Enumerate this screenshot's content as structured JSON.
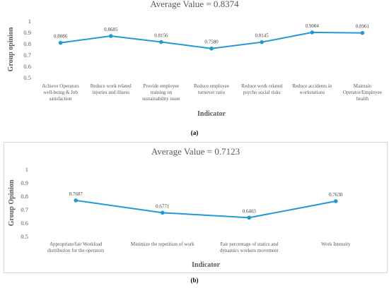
{
  "chart_data": [
    {
      "type": "line",
      "title": "Average Value = 0.8374",
      "xlabel": "Indicator",
      "ylabel": "Group opinion",
      "ylim": [
        0.5,
        1
      ],
      "yticks": [
        "0.5",
        "0.6",
        "0.7",
        "0.8",
        "0.9",
        "1"
      ],
      "categories": [
        "Achieve Operators well-being & Job satisfaction",
        "Reduce work related injuries and illness",
        "Provide employee training on sustainability issue",
        "Reduce employee turnover ratio",
        "Reduce work related psycho social risks",
        "Reduce accidents in workstations",
        "Maintain Operator/Employee health"
      ],
      "values": [
        0.8086,
        0.8685,
        0.8156,
        0.758,
        0.8145,
        0.9004,
        0.8961
      ],
      "data_labels": [
        "0.8086",
        "0.8685",
        "0.8156",
        "0.7580",
        "0.8145",
        "0.9004",
        "0.8961"
      ],
      "color": "#1f9ad6",
      "grid": false,
      "caption": "(a)"
    },
    {
      "type": "line",
      "title": "Average Value = 0.7123",
      "xlabel": "Indicator",
      "ylabel": "Group Opinion",
      "ylim": [
        0.5,
        1
      ],
      "yticks": [
        "0.5",
        "0.6",
        "0.7",
        "0.8",
        "0.9",
        "1"
      ],
      "categories": [
        "Appropriate/fair Workload distribution for the operators",
        "Minimize the repetition of work",
        "Fair percentage of statics and dynamics workers movement",
        "Work Intensity"
      ],
      "values": [
        0.7687,
        0.6771,
        0.6403,
        0.763
      ],
      "data_labels": [
        "0.7687",
        "0.6771",
        "0.6403",
        "0.7630"
      ],
      "color": "#1f9ad6",
      "grid": false,
      "caption": "(b)"
    }
  ]
}
